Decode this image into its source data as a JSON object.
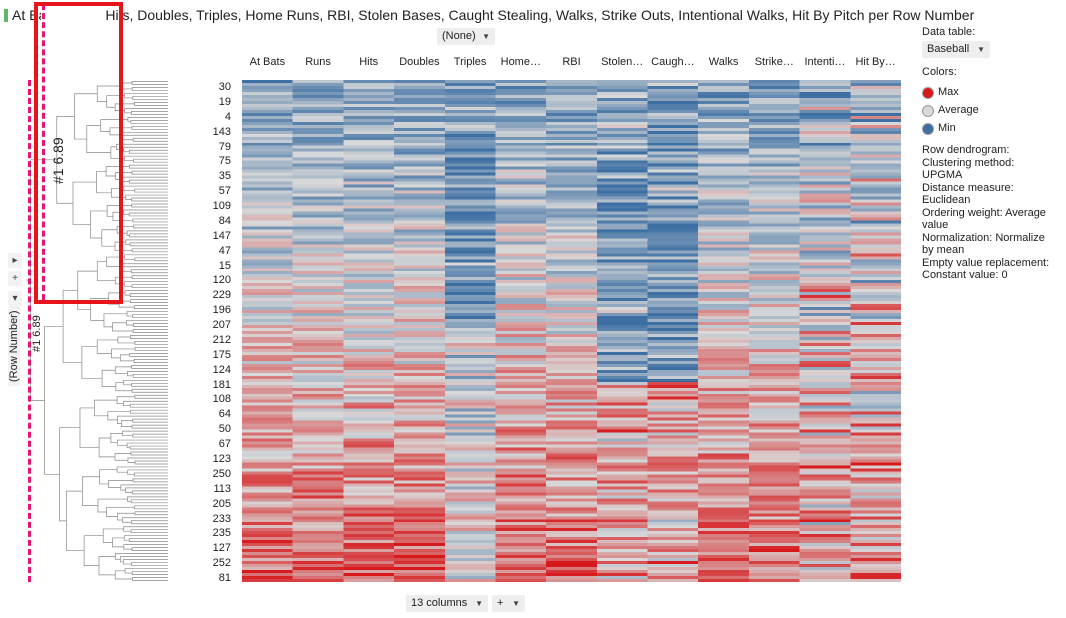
{
  "title": {
    "text": "At Bats, Runs, Hits, Doubles, Triples, Home Runs, RBI, Stolen Bases, Caught Stealing, Walks, Strike Outs, Intentional Walks, Hit By Pitch per Row Number",
    "accent_color": "#5ab867"
  },
  "top_dropdown": {
    "value": "(None)"
  },
  "columns": [
    "At Bats",
    "Runs",
    "Hits",
    "Doubles",
    "Triples",
    "Home…",
    "RBI",
    "Stolen…",
    "Caugh…",
    "Walks",
    "Strike…",
    "Intenti…",
    "Hit By…"
  ],
  "row_labels": [
    "30",
    "19",
    "4",
    "143",
    "79",
    "75",
    "35",
    "57",
    "109",
    "84",
    "147",
    "47",
    "15",
    "120",
    "229",
    "196",
    "207",
    "212",
    "175",
    "124",
    "181",
    "108",
    "64",
    "50",
    "67",
    "123",
    "250",
    "113",
    "205",
    "233",
    "235",
    "127",
    "252",
    "81"
  ],
  "side_panel": {
    "data_table_label": "Data table:",
    "data_table_value": "Baseball",
    "colors_label": "Colors:",
    "legend": [
      {
        "label": "Max",
        "color": "#d7191c"
      },
      {
        "label": "Average",
        "color": "#d9d9d9"
      },
      {
        "label": "Min",
        "color": "#3d6fa3"
      }
    ],
    "info_lines": [
      "Row dendrogram:",
      "Clustering method:",
      "UPGMA",
      "Distance measure:",
      "Euclidean",
      "Ordering weight: Average",
      "value",
      "Normalization: Normalize",
      "by mean",
      "Empty value replacement:",
      "Constant value: 0"
    ]
  },
  "left_controls": {
    "axis_label": "(Row Number)",
    "cut_label": "#1 6.89",
    "cut_label_large": "#1 6.89",
    "btn_expand": "▸",
    "btn_plus": "+",
    "btn_collapse": "▾"
  },
  "bottom": {
    "columns_dropdown": "13 columns",
    "add_button": "+"
  }
}
